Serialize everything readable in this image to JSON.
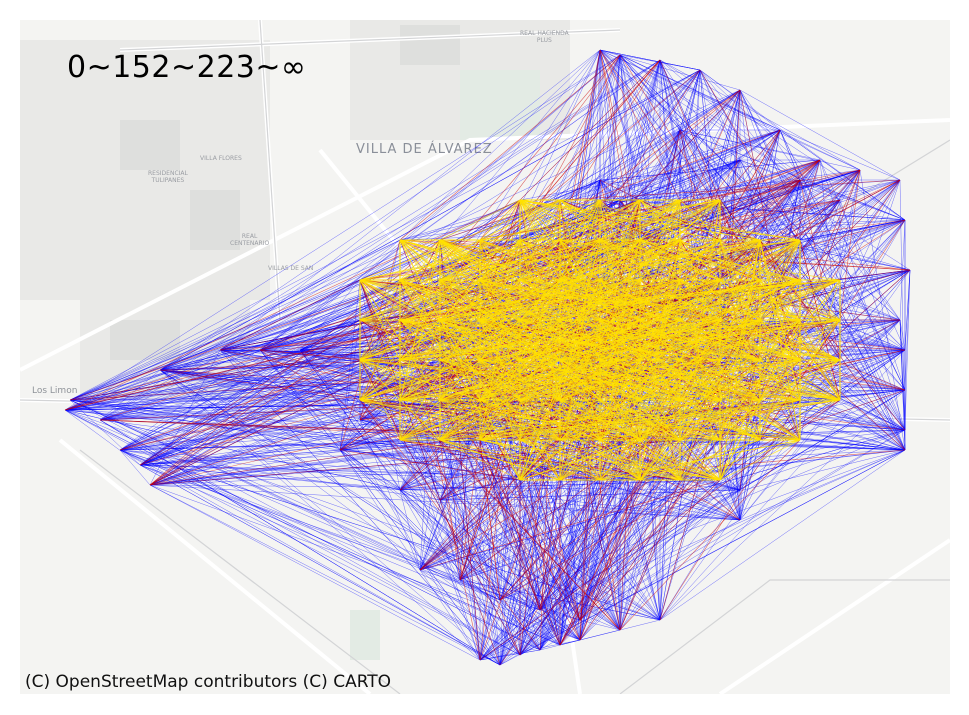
{
  "legend": {
    "range_text": "0~152~223~∞"
  },
  "attribution": "(C) OpenStreetMap contributors (C) CARTO",
  "places": {
    "villa_de_alvarez": "VILLA DE ÁLVAREZ",
    "real_hacienda": "REAL HACIENDA\nPLUS",
    "villa_flores": "VILLA FLORES",
    "residencial_tulipanes": "RESIDENCIAL\nTULIPANES",
    "real_centenario": "REAL\nCENTENARIO",
    "villas_de_san": "VILLAS DE SAN",
    "los_limones": "Los Limon"
  },
  "colors": {
    "basemap": "#f4f4f2",
    "flow_short": "#ffe100",
    "flow_medium": "#cc0000",
    "flow_long": "#0000ff"
  },
  "flow_classes": [
    {
      "name": "0~152",
      "color": "#ffe100"
    },
    {
      "name": "152~223",
      "color": "#cc0000"
    },
    {
      "name": "223~∞",
      "color": "#0000ff"
    }
  ]
}
